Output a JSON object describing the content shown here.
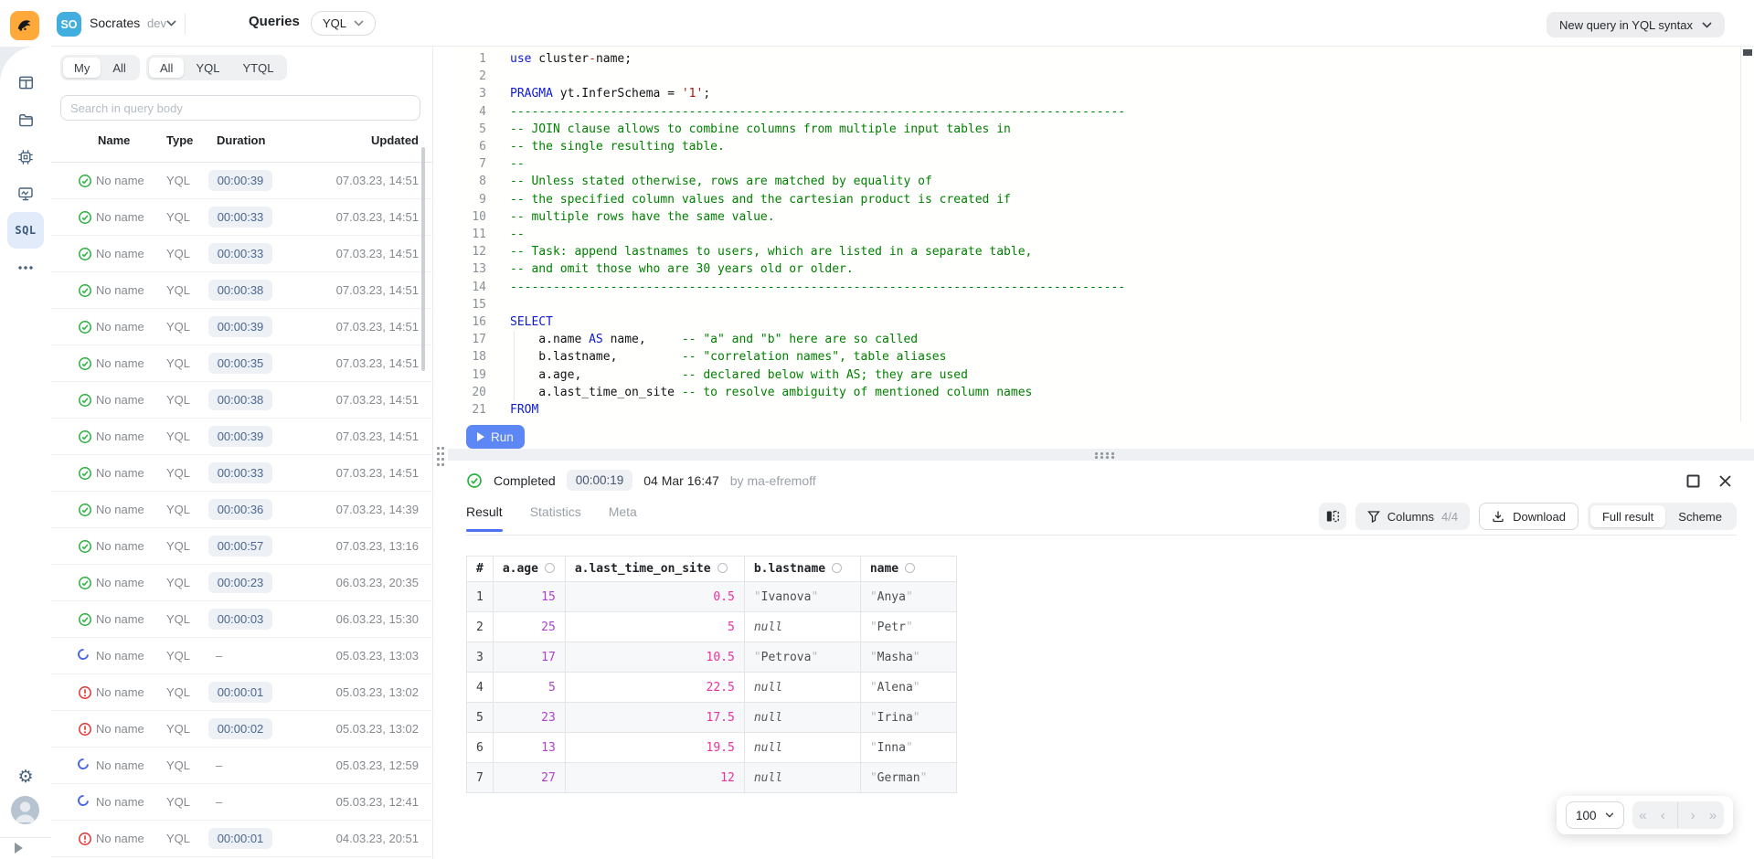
{
  "header": {
    "project": {
      "avatar_initials": "SO",
      "name": "Socrates",
      "env": "dev"
    },
    "title": "Queries",
    "syntax_select_value": "YQL",
    "new_query_button": "New query in YQL syntax"
  },
  "sidebar": {
    "sql_label": "SQL"
  },
  "queryPanel": {
    "owner_tabs": [
      "My",
      "All"
    ],
    "type_tabs": [
      "All",
      "YQL",
      "YTQL"
    ],
    "search_placeholder": "Search in query body",
    "columns": [
      "Name",
      "Type",
      "Duration",
      "Updated"
    ],
    "rows": [
      {
        "status": "ok",
        "name": "No name",
        "type": "YQL",
        "duration": "00:00:39",
        "updated": "07.03.23, 14:51"
      },
      {
        "status": "ok",
        "name": "No name",
        "type": "YQL",
        "duration": "00:00:33",
        "updated": "07.03.23, 14:51"
      },
      {
        "status": "ok",
        "name": "No name",
        "type": "YQL",
        "duration": "00:00:33",
        "updated": "07.03.23, 14:51"
      },
      {
        "status": "ok",
        "name": "No name",
        "type": "YQL",
        "duration": "00:00:38",
        "updated": "07.03.23, 14:51"
      },
      {
        "status": "ok",
        "name": "No name",
        "type": "YQL",
        "duration": "00:00:39",
        "updated": "07.03.23, 14:51"
      },
      {
        "status": "ok",
        "name": "No name",
        "type": "YQL",
        "duration": "00:00:35",
        "updated": "07.03.23, 14:51"
      },
      {
        "status": "ok",
        "name": "No name",
        "type": "YQL",
        "duration": "00:00:38",
        "updated": "07.03.23, 14:51"
      },
      {
        "status": "ok",
        "name": "No name",
        "type": "YQL",
        "duration": "00:00:39",
        "updated": "07.03.23, 14:51"
      },
      {
        "status": "ok",
        "name": "No name",
        "type": "YQL",
        "duration": "00:00:33",
        "updated": "07.03.23, 14:51"
      },
      {
        "status": "ok",
        "name": "No name",
        "type": "YQL",
        "duration": "00:00:36",
        "updated": "07.03.23, 14:39"
      },
      {
        "status": "ok",
        "name": "No name",
        "type": "YQL",
        "duration": "00:00:57",
        "updated": "07.03.23, 13:16"
      },
      {
        "status": "ok",
        "name": "No name",
        "type": "YQL",
        "duration": "00:00:23",
        "updated": "06.03.23, 20:35"
      },
      {
        "status": "ok",
        "name": "No name",
        "type": "YQL",
        "duration": "00:00:03",
        "updated": "06.03.23, 15:30"
      },
      {
        "status": "running",
        "name": "No name",
        "type": "YQL",
        "duration": null,
        "updated": "05.03.23, 13:03"
      },
      {
        "status": "error",
        "name": "No name",
        "type": "YQL",
        "duration": "00:00:01",
        "updated": "05.03.23, 13:02"
      },
      {
        "status": "error",
        "name": "No name",
        "type": "YQL",
        "duration": "00:00:02",
        "updated": "05.03.23, 13:02"
      },
      {
        "status": "running",
        "name": "No name",
        "type": "YQL",
        "duration": null,
        "updated": "05.03.23, 12:59"
      },
      {
        "status": "running",
        "name": "No name",
        "type": "YQL",
        "duration": null,
        "updated": "05.03.23, 12:41"
      },
      {
        "status": "error",
        "name": "No name",
        "type": "YQL",
        "duration": "00:00:01",
        "updated": "04.03.23, 20:51"
      }
    ]
  },
  "editor": {
    "run_label": "Run",
    "lines": [
      {
        "n": 1,
        "t": [
          [
            "k",
            "use"
          ],
          [
            "p",
            " cluster"
          ],
          [
            "o",
            "-"
          ],
          [
            "p",
            "name;"
          ]
        ]
      },
      {
        "n": 2,
        "t": []
      },
      {
        "n": 3,
        "t": [
          [
            "k",
            "PRAGMA"
          ],
          [
            "p",
            " yt.InferSchema = "
          ],
          [
            "s",
            "'1'"
          ],
          [
            "p",
            ";"
          ]
        ]
      },
      {
        "n": 4,
        "t": [
          [
            "c",
            "--------------------------------------------------------------------------------------"
          ]
        ]
      },
      {
        "n": 5,
        "t": [
          [
            "c",
            "-- JOIN clause allows to combine columns from multiple input tables in"
          ]
        ]
      },
      {
        "n": 6,
        "t": [
          [
            "c",
            "-- the single resulting table."
          ]
        ]
      },
      {
        "n": 7,
        "t": [
          [
            "c",
            "--"
          ]
        ]
      },
      {
        "n": 8,
        "t": [
          [
            "c",
            "-- Unless stated otherwise, rows are matched by equality of"
          ]
        ]
      },
      {
        "n": 9,
        "t": [
          [
            "c",
            "-- the specified column values and the cartesian product is created if"
          ]
        ]
      },
      {
        "n": 10,
        "t": [
          [
            "c",
            "-- multiple rows have the same value."
          ]
        ]
      },
      {
        "n": 11,
        "t": [
          [
            "c",
            "--"
          ]
        ]
      },
      {
        "n": 12,
        "t": [
          [
            "c",
            "-- Task: append lastnames to users, which are listed in a separate table,"
          ]
        ]
      },
      {
        "n": 13,
        "t": [
          [
            "c",
            "-- and omit those who are 30 years old or older."
          ]
        ]
      },
      {
        "n": 14,
        "t": [
          [
            "c",
            "--------------------------------------------------------------------------------------"
          ]
        ]
      },
      {
        "n": 15,
        "t": []
      },
      {
        "n": 16,
        "t": [
          [
            "k",
            "SELECT"
          ]
        ]
      },
      {
        "n": 17,
        "t": [
          [
            "p",
            "    a.name "
          ],
          [
            "k",
            "AS"
          ],
          [
            "p",
            " name,     "
          ],
          [
            "c",
            "-- \"a\" and \"b\" here are so called"
          ]
        ]
      },
      {
        "n": 18,
        "t": [
          [
            "p",
            "    b.lastname,         "
          ],
          [
            "c",
            "-- \"correlation names\", table aliases"
          ]
        ]
      },
      {
        "n": 19,
        "t": [
          [
            "p",
            "    a.age,              "
          ],
          [
            "c",
            "-- declared below with AS; they are used"
          ]
        ]
      },
      {
        "n": 20,
        "t": [
          [
            "p",
            "    a.last_time_on_site "
          ],
          [
            "c",
            "-- to resolve ambiguity of mentioned column names"
          ]
        ]
      },
      {
        "n": 21,
        "t": [
          [
            "k",
            "FROM"
          ]
        ]
      }
    ]
  },
  "result": {
    "status": {
      "label": "Completed",
      "duration": "00:00:19",
      "date": "04 Mar 16:47",
      "author": "by ma-efremoff"
    },
    "tabs": [
      "Result",
      "Statistics",
      "Meta"
    ],
    "toolbar": {
      "columns_label": "Columns",
      "columns_count": "4/4",
      "download_label": "Download",
      "view_tabs": [
        "Full result",
        "Scheme"
      ]
    },
    "table": {
      "columns": [
        "#",
        "a.age",
        "a.last_time_on_site",
        "b.lastname",
        "name"
      ],
      "rows": [
        [
          {
            "t": "idx",
            "v": "1"
          },
          {
            "t": "int",
            "v": "15"
          },
          {
            "t": "dbl",
            "v": "0.5"
          },
          {
            "t": "str",
            "v": "Ivanova"
          },
          {
            "t": "str",
            "v": "Anya"
          }
        ],
        [
          {
            "t": "idx",
            "v": "2"
          },
          {
            "t": "int",
            "v": "25"
          },
          {
            "t": "dbl",
            "v": "5"
          },
          {
            "t": "null",
            "v": "null"
          },
          {
            "t": "str",
            "v": "Petr"
          }
        ],
        [
          {
            "t": "idx",
            "v": "3"
          },
          {
            "t": "int",
            "v": "17"
          },
          {
            "t": "dbl",
            "v": "10.5"
          },
          {
            "t": "str",
            "v": "Petrova"
          },
          {
            "t": "str",
            "v": "Masha"
          }
        ],
        [
          {
            "t": "idx",
            "v": "4"
          },
          {
            "t": "int",
            "v": "5"
          },
          {
            "t": "dbl",
            "v": "22.5"
          },
          {
            "t": "null",
            "v": "null"
          },
          {
            "t": "str",
            "v": "Alena"
          }
        ],
        [
          {
            "t": "idx",
            "v": "5"
          },
          {
            "t": "int",
            "v": "23"
          },
          {
            "t": "dbl",
            "v": "17.5"
          },
          {
            "t": "null",
            "v": "null"
          },
          {
            "t": "str",
            "v": "Irina"
          }
        ],
        [
          {
            "t": "idx",
            "v": "6"
          },
          {
            "t": "int",
            "v": "13"
          },
          {
            "t": "dbl",
            "v": "19.5"
          },
          {
            "t": "null",
            "v": "null"
          },
          {
            "t": "str",
            "v": "Inna"
          }
        ],
        [
          {
            "t": "idx",
            "v": "7"
          },
          {
            "t": "int",
            "v": "27"
          },
          {
            "t": "dbl",
            "v": "12"
          },
          {
            "t": "null",
            "v": "null"
          },
          {
            "t": "str",
            "v": "German"
          }
        ]
      ]
    },
    "pagination": {
      "page_size": "100"
    }
  }
}
